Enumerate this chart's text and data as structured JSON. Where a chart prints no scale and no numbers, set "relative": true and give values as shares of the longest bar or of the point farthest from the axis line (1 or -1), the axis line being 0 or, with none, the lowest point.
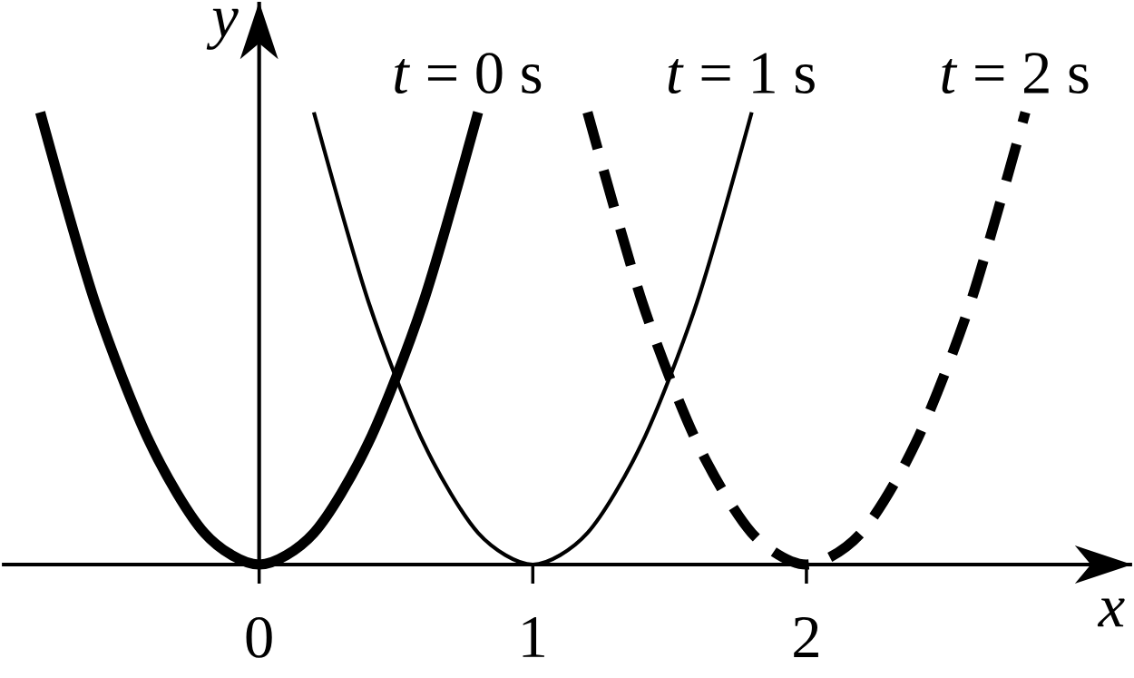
{
  "chart_data": {
    "type": "line",
    "relative": true,
    "xlabel": "*x*",
    "ylabel": "*y*",
    "xlim": [
      -0.94,
      3.19
    ],
    "xticks": [
      0,
      1,
      2
    ],
    "tick_labels": "x",
    "series": [
      {
        "name": "*t* = 0 s",
        "color": "#000000",
        "line_style": "solid",
        "x": [
          -0.8,
          -0.6,
          -0.4,
          -0.2,
          0,
          0.2,
          0.4,
          0.6,
          0.8
        ],
        "values": [
          1,
          0.58,
          0.27,
          0.07,
          0,
          0.07,
          0.27,
          0.58,
          1
        ]
      },
      {
        "name": "*t* = 1 s",
        "color": "#000000",
        "line_style": "solid",
        "x": [
          0.2,
          0.4,
          0.6,
          0.8,
          1,
          1.2,
          1.4,
          1.6,
          1.8
        ],
        "values": [
          1,
          0.58,
          0.27,
          0.07,
          0,
          0.07,
          0.27,
          0.58,
          1
        ]
      },
      {
        "name": "*t* = 2 s",
        "color": "#000000",
        "line_style": "dashed",
        "x": [
          1.2,
          1.4,
          1.6,
          1.8,
          2,
          2.2,
          2.4,
          2.6,
          2.8
        ],
        "values": [
          1,
          0.58,
          0.27,
          0.07,
          0,
          0.07,
          0.27,
          0.58,
          1
        ]
      }
    ]
  }
}
